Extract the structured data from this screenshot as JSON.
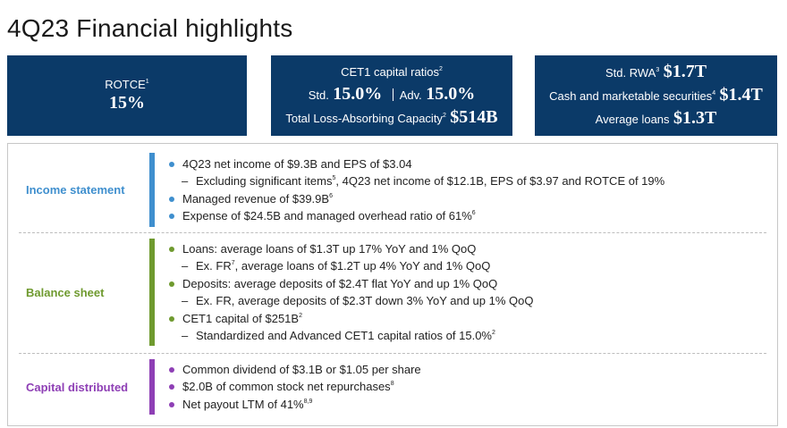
{
  "title": "4Q23 Financial highlights",
  "tiles": {
    "rotce": {
      "label": "ROTCE",
      "sup": "1",
      "value": "15%"
    },
    "cet1": {
      "heading": "CET1 capital ratios",
      "heading_sup": "2",
      "std_label": "Std.",
      "std_value": "15.0%",
      "adv_label": "Adv.",
      "adv_value": "15.0%",
      "tlac_label": "Total Loss-Absorbing Capacity",
      "tlac_sup": "2",
      "tlac_value": "$514B"
    },
    "balance": {
      "rwa_label": "Std. RWA",
      "rwa_sup": "3",
      "rwa_value": "$1.7T",
      "cash_label": "Cash and marketable securities",
      "cash_sup": "4",
      "cash_value": "$1.4T",
      "loans_label": "Average loans",
      "loans_value": "$1.3T"
    }
  },
  "colors": {
    "navy": "#0b3a68",
    "income": "#3f8fce",
    "balance": "#6f9a2f",
    "capital": "#8e3fb5"
  },
  "sections": {
    "income": {
      "label": "Income statement",
      "items": {
        "i1": "4Q23 net income of $9.3B and EPS of $3.04",
        "i1a_pre": "Excluding significant items",
        "i1a_sup": "5",
        "i1a_post": ", 4Q23 net income of $12.1B, EPS of $3.97 and ROTCE of 19%",
        "i2": "Managed revenue of $39.9B",
        "i2_sup": "6",
        "i3": "Expense of $24.5B and managed overhead ratio of 61%",
        "i3_sup": "6"
      }
    },
    "balance": {
      "label": "Balance sheet",
      "items": {
        "b1": "Loans: average loans of $1.3T up 17% YoY and 1% QoQ",
        "b1a_pre": "Ex. FR",
        "b1a_sup": "7",
        "b1a_post": ", average loans of $1.2T up 4% YoY and 1% QoQ",
        "b2": "Deposits: average deposits of $2.4T flat YoY and up 1% QoQ",
        "b2a": "Ex. FR, average deposits of $2.3T down 3% YoY and up 1% QoQ",
        "b3": "CET1 capital of $251B",
        "b3_sup": "2",
        "b3a": "Standardized and Advanced CET1 capital ratios of 15.0%",
        "b3a_sup": "2"
      }
    },
    "capital": {
      "label": "Capital distributed",
      "items": {
        "c1": "Common dividend of $3.1B or $1.05 per share",
        "c2": "$2.0B of common stock net repurchases",
        "c2_sup": "8",
        "c3": "Net payout LTM of 41%",
        "c3_sup": "8,9"
      }
    }
  }
}
